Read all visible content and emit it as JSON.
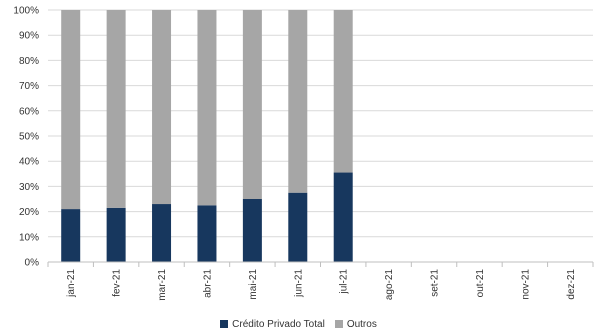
{
  "chart_data": {
    "type": "bar",
    "stacked": true,
    "percent_stacked": true,
    "categories": [
      "jan-21",
      "fev-21",
      "mar-21",
      "abr-21",
      "mai-21",
      "jun-21",
      "jul-21",
      "ago-21",
      "set-21",
      "out-21",
      "nov-21",
      "dez-21"
    ],
    "series": [
      {
        "name": "Crédito Privado Total",
        "color": "#17375e",
        "values": [
          21,
          21.5,
          23,
          22.5,
          25,
          27.5,
          35.5,
          null,
          null,
          null,
          null,
          null
        ]
      },
      {
        "name": "Outros",
        "color": "#a6a6a6",
        "values": [
          79,
          78.5,
          77,
          77.5,
          75,
          72.5,
          64.5,
          null,
          null,
          null,
          null,
          null
        ]
      }
    ],
    "ylim": [
      0,
      100
    ],
    "yticks": [
      "0%",
      "10%",
      "20%",
      "30%",
      "40%",
      "50%",
      "60%",
      "70%",
      "80%",
      "90%",
      "100%"
    ],
    "grid": true,
    "legend_position": "bottom"
  }
}
